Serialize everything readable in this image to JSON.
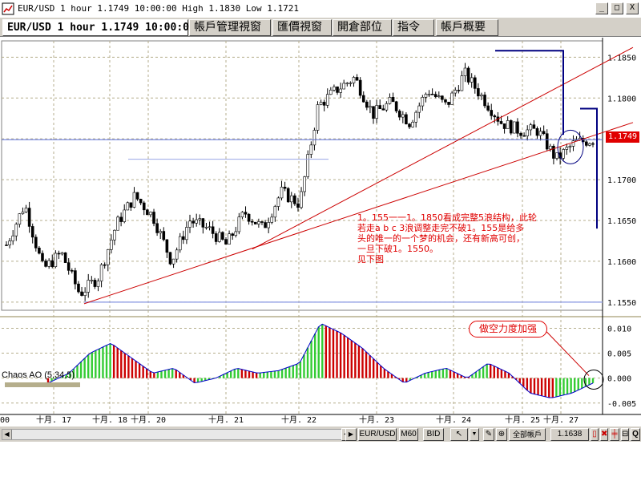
{
  "window": {
    "title": "EUR/USD 1 hour 1.1749 10:00:00 High 1.1830 Low 1.1721",
    "controls": [
      "_",
      "□",
      "X"
    ]
  },
  "tabs": [
    {
      "label": "EUR/USD 1 hour 1.1749 10:00:00",
      "active": true
    },
    {
      "label": "帳戶管理視窗",
      "active": false
    },
    {
      "label": "匯價視窗",
      "active": false
    },
    {
      "label": "開倉部位",
      "active": false
    },
    {
      "label": "指令",
      "active": false
    },
    {
      "label": "帳戶概要",
      "active": false
    }
  ],
  "price_axis": {
    "labels": [
      "1.1850",
      "1.1800",
      "1.1750",
      "1.1700",
      "1.1650",
      "1.1600",
      "1.1550"
    ],
    "current_price": "1.1749"
  },
  "indicator": {
    "name": "Chaos AO (5,34,5)",
    "axis_labels": [
      "0.010",
      "0.005",
      "0.000",
      "-0.005"
    ]
  },
  "time_axis": {
    "labels": [
      "00",
      "十月. 17",
      "十月. 18",
      "十月. 20",
      "十月. 21",
      "十月. 22",
      "十月. 23",
      "十月. 24",
      "十月. 25",
      "十月. 27"
    ]
  },
  "annotation": {
    "lines": [
      "1。155一一1。1850看成完整5浪结构，此轮",
      "若走a b c 3浪调整走完不破1。155是给多",
      "头的唯一的一个梦的机会，还有新高可创，",
      "一旦下破1。1550。",
      "见下图"
    ]
  },
  "callout": "做空力度加强",
  "toolbar": {
    "symbol": "EUR/USD",
    "timeframe": "M60",
    "side": "BID",
    "account": "全部帳戶",
    "price": "1.1638",
    "help": "Q"
  },
  "colors": {
    "up_bar": "#33cc33",
    "down_bar": "#cc0000",
    "candle": "#000000",
    "trendline": "#cc0000",
    "box": "#000080",
    "grid": "#b5ae8c",
    "price_line": "#5a6fd6"
  },
  "chart_data": {
    "type": "ohlc",
    "symbol": "EUR/USD",
    "timeframe": "1 hour",
    "ylim": [
      1.154,
      1.187
    ],
    "x": [
      "十月. 17",
      "十月. 18",
      "十月. 20",
      "十月. 21",
      "十月. 22",
      "十月. 23",
      "十月. 24",
      "十月. 25",
      "十月. 27"
    ],
    "close_path": [
      1.162,
      1.167,
      1.159,
      1.161,
      1.156,
      1.158,
      1.1645,
      1.168,
      1.1655,
      1.16,
      1.165,
      1.164,
      1.162,
      1.166,
      1.164,
      1.1685,
      1.167,
      1.179,
      1.181,
      1.1825,
      1.178,
      1.1795,
      1.177,
      1.181,
      1.179,
      1.183,
      1.18,
      1.177,
      1.176,
      1.176,
      1.1725,
      1.1745,
      1.1749
    ],
    "high": 1.183,
    "low": 1.1721,
    "ao_ylim": [
      -0.006,
      0.012
    ],
    "ao_values": [
      -0.001,
      0.001,
      0.005,
      0.007,
      0.004,
      0.001,
      0.002,
      -0.001,
      0.0,
      0.002,
      0.001,
      0.0015,
      0.003,
      0.011,
      0.009,
      0.006,
      0.002,
      -0.001,
      0.001,
      0.002,
      0.0,
      0.003,
      0.001,
      -0.003,
      -0.004,
      -0.003,
      -0.001
    ]
  }
}
